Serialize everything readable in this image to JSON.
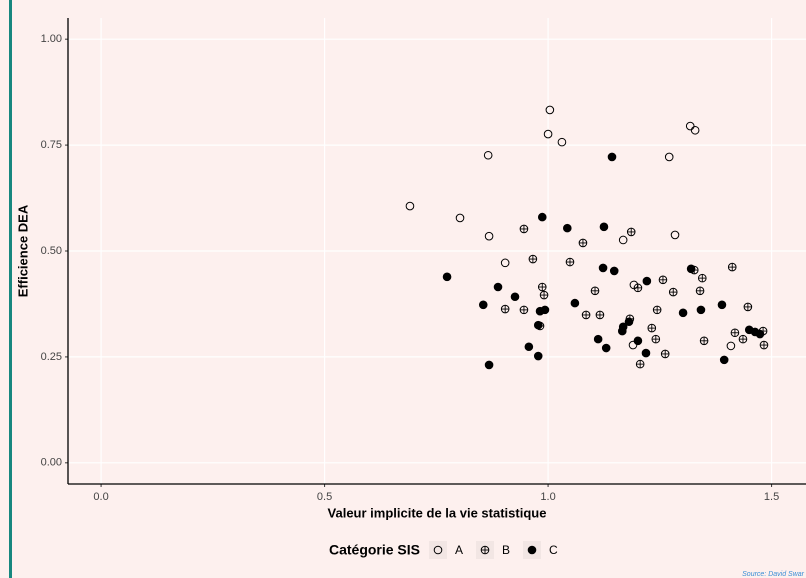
{
  "chart_data": {
    "type": "scatter",
    "xlabel": "Valeur implicite de la vie statistique",
    "ylabel": "Efficience DEA",
    "xlim": [
      -0.074,
      1.577
    ],
    "ylim": [
      -0.05,
      1.05
    ],
    "xticks": [
      {
        "value": 0,
        "label": "0.0"
      },
      0.5,
      {
        "value": 1,
        "label": "1.0"
      },
      1.5
    ],
    "yticks": [
      {
        "value": 0,
        "label": "0.00"
      },
      0.25,
      {
        "value": 0.5,
        "label": "0.50"
      },
      0.75,
      {
        "value": 1,
        "label": "1.00"
      }
    ],
    "grid": true,
    "legend_title": "Catégorie SIS",
    "legend_position": "bottom",
    "source": "Source: David Swar",
    "series": [
      {
        "name": "A",
        "color": "#000000",
        "shape": "open",
        "x": [
          1.004,
          1.0,
          1.031,
          0.866,
          1.318,
          1.329,
          1.271,
          0.691,
          0.803,
          0.868,
          1.284,
          1.168,
          0.904,
          1.192,
          1.19,
          1.409
        ],
        "values": [
          0.833,
          0.776,
          0.757,
          0.726,
          0.795,
          0.785,
          0.722,
          0.606,
          0.578,
          0.535,
          0.538,
          0.526,
          0.472,
          0.42,
          0.278,
          0.276
        ]
      },
      {
        "name": "B",
        "color": "#000000",
        "shape": "crossed",
        "x": [
          0.946,
          1.186,
          1.078,
          0.966,
          1.049,
          1.257,
          1.327,
          1.345,
          1.412,
          0.987,
          0.991,
          1.201,
          1.34,
          1.28,
          1.105,
          0.904,
          0.946,
          1.085,
          1.116,
          1.244,
          1.183,
          1.447,
          0.982,
          1.232,
          1.418,
          1.481,
          1.241,
          1.349,
          1.436,
          1.483,
          1.262,
          1.206
        ],
        "values": [
          0.552,
          0.545,
          0.519,
          0.481,
          0.474,
          0.432,
          0.455,
          0.436,
          0.462,
          0.415,
          0.396,
          0.413,
          0.406,
          0.403,
          0.406,
          0.363,
          0.361,
          0.349,
          0.349,
          0.361,
          0.34,
          0.368,
          0.323,
          0.318,
          0.307,
          0.311,
          0.292,
          0.288,
          0.292,
          0.278,
          0.257,
          0.233
        ]
      },
      {
        "name": "C",
        "color": "#000000",
        "shape": "filled",
        "x": [
          1.143,
          0.987,
          1.043,
          1.125,
          0.774,
          1.123,
          1.148,
          1.221,
          1.32,
          0.888,
          0.926,
          1.06,
          0.855,
          0.982,
          0.993,
          1.302,
          1.389,
          1.342,
          0.978,
          1.168,
          1.181,
          1.112,
          1.201,
          1.13,
          0.957,
          1.166,
          1.45,
          1.463,
          1.474,
          0.978,
          1.219,
          1.394,
          0.868
        ],
        "values": [
          0.722,
          0.58,
          0.554,
          0.557,
          0.439,
          0.46,
          0.453,
          0.429,
          0.458,
          0.415,
          0.392,
          0.377,
          0.373,
          0.358,
          0.361,
          0.354,
          0.373,
          0.361,
          0.325,
          0.321,
          0.333,
          0.292,
          0.288,
          0.271,
          0.274,
          0.311,
          0.314,
          0.309,
          0.304,
          0.252,
          0.259,
          0.243,
          0.231
        ]
      }
    ]
  }
}
